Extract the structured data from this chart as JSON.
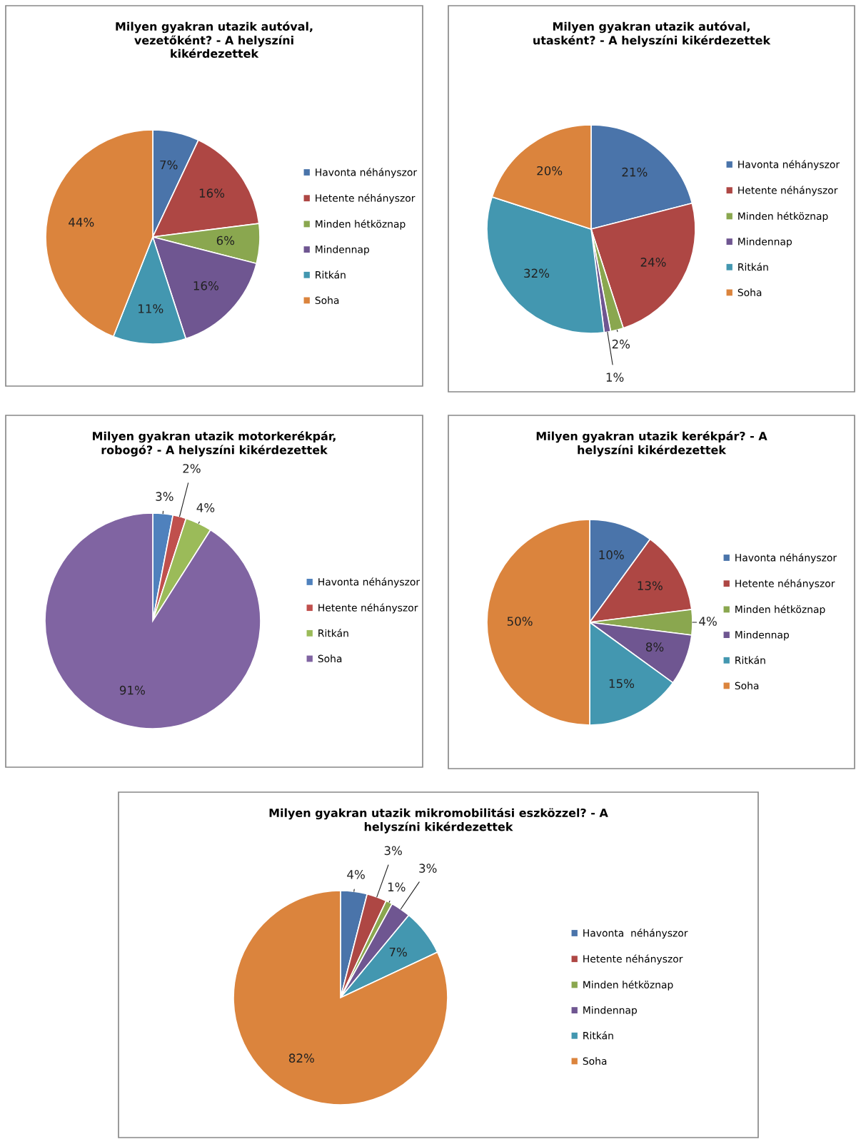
{
  "chart_data": [
    {
      "type": "pie",
      "title": "Milyen gyakran utazik autóval,\nvezetőként? - A helyszíni\nkikérdezettek",
      "categories": [
        "Havonta néhányszor",
        "Hetente néhányszor",
        "Minden hétköznap",
        "Mindennap",
        "Ritkán",
        "Soha"
      ],
      "values": [
        7,
        16,
        6,
        16,
        11,
        44
      ],
      "value_labels": [
        "7%",
        "16%",
        "6%",
        "16%",
        "11%",
        "44%"
      ],
      "colors": [
        "#4a74aa",
        "#ae4744",
        "#8aa74f",
        "#6f5691",
        "#4397b0",
        "#db843d"
      ],
      "legend": "right"
    },
    {
      "type": "pie",
      "title": "Milyen gyakran utazik autóval,\nutasként? - A helyszíni kikérdezettek",
      "categories": [
        "Havonta néhányszor",
        "Hetente néhányszor",
        "Minden hétköznap",
        "Mindennap",
        "Ritkán",
        "Soha"
      ],
      "values": [
        21,
        24,
        2,
        1,
        32,
        20
      ],
      "value_labels": [
        "21%",
        "24%",
        "2%",
        "1%",
        "32%",
        "20%"
      ],
      "colors": [
        "#4a74aa",
        "#ae4744",
        "#8aa74f",
        "#6f5691",
        "#4397b0",
        "#db843d"
      ],
      "legend": "right"
    },
    {
      "type": "pie",
      "title": "Milyen gyakran utazik motorkerékpár,\nrobogó? - A helyszíni kikérdezettek",
      "categories": [
        "Havonta néhányszor",
        "Hetente néhányszor",
        "Ritkán",
        "Soha"
      ],
      "values": [
        3,
        2,
        4,
        91
      ],
      "value_labels": [
        "3%",
        "2%",
        "4%",
        "91%"
      ],
      "colors": [
        "#4f81bd",
        "#c0504d",
        "#9bbb59",
        "#8064a2"
      ],
      "legend": "right"
    },
    {
      "type": "pie",
      "title": "Milyen gyakran utazik kerékpár? - A\nhelyszíni kikérdezettek",
      "categories": [
        "Havonta néhányszor",
        "Hetente néhányszor",
        "Minden hétköznap",
        "Mindennap",
        "Ritkán",
        "Soha"
      ],
      "values": [
        10,
        13,
        4,
        8,
        15,
        50
      ],
      "value_labels": [
        "10%",
        "13%",
        "4%",
        "8%",
        "15%",
        "50%"
      ],
      "colors": [
        "#4a74aa",
        "#ae4744",
        "#8aa74f",
        "#6f5691",
        "#4397b0",
        "#db843d"
      ],
      "legend": "right"
    },
    {
      "type": "pie",
      "title": "Milyen gyakran utazik mikromobilitási eszközzel? - A\nhelyszíni kikérdezettek",
      "categories": [
        "Havonta  néhányszor",
        "Hetente néhányszor",
        "Minden hétköznap",
        "Mindennap",
        "Ritkán",
        "Soha"
      ],
      "values": [
        4,
        3,
        1,
        3,
        7,
        82
      ],
      "value_labels": [
        "4%",
        "3%",
        "1%",
        "3%",
        "7%",
        "82%"
      ],
      "colors": [
        "#4a74aa",
        "#ae4744",
        "#8aa74f",
        "#6f5691",
        "#4397b0",
        "#db843d"
      ],
      "legend": "right"
    }
  ]
}
